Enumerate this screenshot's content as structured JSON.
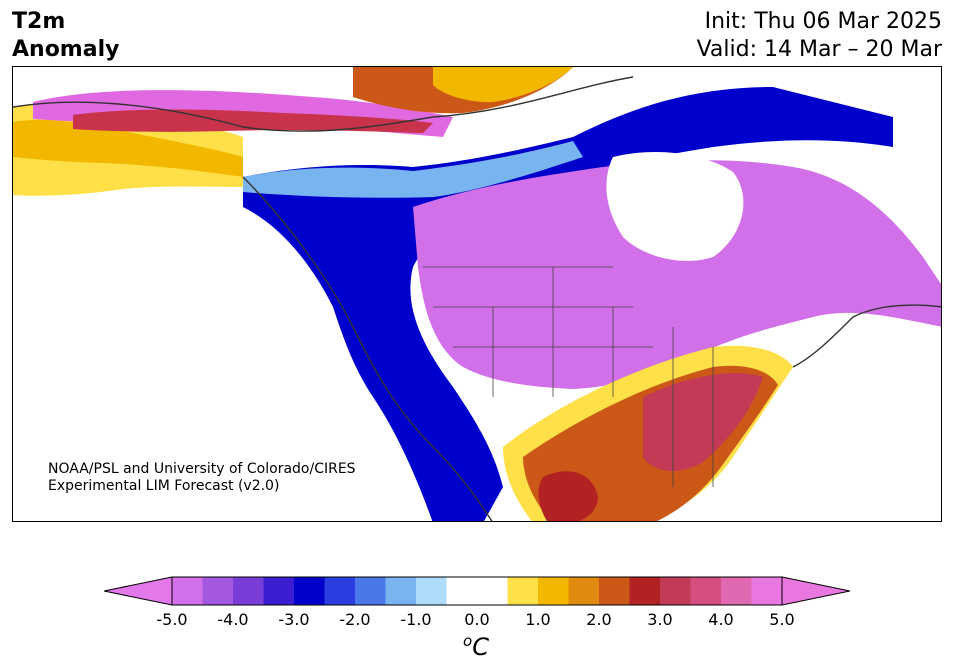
{
  "header": {
    "title_line1": "T2m",
    "title_line2": "Anomaly",
    "init": "Init: Thu 06 Mar 2025",
    "valid": "Valid: 14 Mar – 20 Mar"
  },
  "credit": {
    "line1": "NOAA/PSL and University of Colorado/CIRES",
    "line2": "Experimental LIM Forecast (v2.0)"
  },
  "colorbar": {
    "unit_base": "C",
    "unit_sup": "o",
    "tick_labels": [
      "-5.0",
      "-4.0",
      "-3.0",
      "-2.0",
      "-1.0",
      "0.0",
      "1.0",
      "2.0",
      "3.0",
      "4.0",
      "5.0"
    ],
    "min": -5.0,
    "max": 5.0,
    "step": 0.5,
    "under_color": "#e278ea",
    "over_color": "#e878e0",
    "colors": [
      "#d170e8",
      "#a458e0",
      "#7a3ed8",
      "#3c1cd0",
      "#0000cc",
      "#2a3ee0",
      "#4a78e8",
      "#78b4f0",
      "#b0dcfc",
      "#ffffff",
      "#ffffff",
      "#ffe048",
      "#f2b800",
      "#e08a10",
      "#cc5818",
      "#b22222",
      "#c23a56",
      "#d44e80",
      "#e068b0",
      "#e878e0"
    ]
  },
  "map": {
    "region": "North America",
    "field": "2m temperature anomaly"
  }
}
